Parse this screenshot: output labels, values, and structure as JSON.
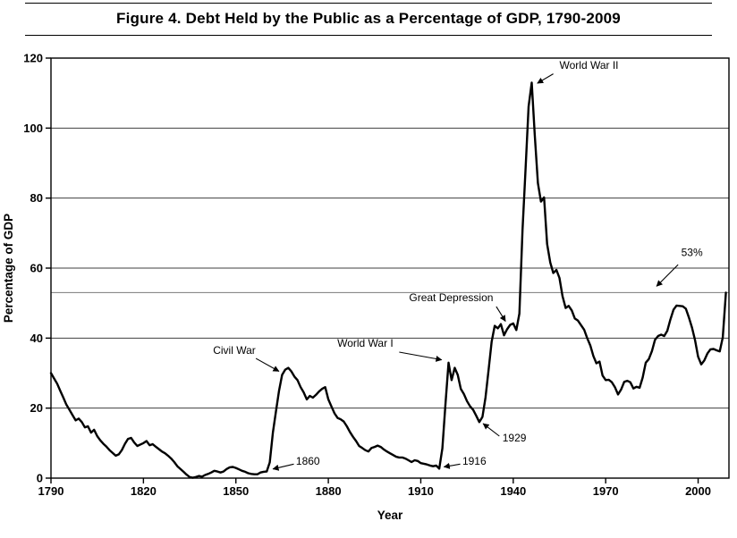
{
  "figure": {
    "title": "Figure 4. Debt Held by the Public as a Percentage of GDP, 1790-2009"
  },
  "chart_data": {
    "type": "line",
    "title": "Figure 4. Debt Held by the Public as a Percentage of GDP, 1790-2009",
    "xlabel": "Year",
    "ylabel": "Percentage of GDP",
    "xlim": [
      1790,
      2010
    ],
    "ylim": [
      0,
      120
    ],
    "xticks": [
      1790,
      1820,
      1850,
      1880,
      1910,
      1940,
      1970,
      2000
    ],
    "yticks": [
      0,
      20,
      40,
      60,
      80,
      100,
      120
    ],
    "grid": "horizontal",
    "legend": "none",
    "line_color": "#000000",
    "reference_line": {
      "value": 53,
      "label": "53%"
    },
    "series": [
      {
        "name": "Debt held by the public (% of GDP)",
        "points": [
          [
            1790,
            30.0
          ],
          [
            1791,
            28.5
          ],
          [
            1792,
            27.0
          ],
          [
            1793,
            25.0
          ],
          [
            1794,
            23.0
          ],
          [
            1795,
            21.0
          ],
          [
            1796,
            19.5
          ],
          [
            1797,
            18.0
          ],
          [
            1798,
            16.5
          ],
          [
            1799,
            17.0
          ],
          [
            1800,
            16.0
          ],
          [
            1801,
            14.5
          ],
          [
            1802,
            14.8
          ],
          [
            1803,
            13.0
          ],
          [
            1804,
            13.8
          ],
          [
            1805,
            12.0
          ],
          [
            1806,
            10.8
          ],
          [
            1807,
            9.8
          ],
          [
            1808,
            9.0
          ],
          [
            1809,
            8.0
          ],
          [
            1810,
            7.2
          ],
          [
            1811,
            6.4
          ],
          [
            1812,
            6.8
          ],
          [
            1813,
            8.0
          ],
          [
            1814,
            9.8
          ],
          [
            1815,
            11.2
          ],
          [
            1816,
            11.5
          ],
          [
            1817,
            10.2
          ],
          [
            1818,
            9.2
          ],
          [
            1819,
            9.6
          ],
          [
            1820,
            10.0
          ],
          [
            1821,
            10.6
          ],
          [
            1822,
            9.4
          ],
          [
            1823,
            9.7
          ],
          [
            1824,
            9.0
          ],
          [
            1825,
            8.3
          ],
          [
            1826,
            7.6
          ],
          [
            1827,
            7.1
          ],
          [
            1828,
            6.4
          ],
          [
            1829,
            5.6
          ],
          [
            1830,
            4.6
          ],
          [
            1831,
            3.4
          ],
          [
            1832,
            2.6
          ],
          [
            1833,
            1.8
          ],
          [
            1834,
            1.0
          ],
          [
            1835,
            0.3
          ],
          [
            1836,
            0.1
          ],
          [
            1837,
            0.3
          ],
          [
            1838,
            0.6
          ],
          [
            1839,
            0.4
          ],
          [
            1840,
            0.9
          ],
          [
            1841,
            1.2
          ],
          [
            1842,
            1.6
          ],
          [
            1843,
            2.1
          ],
          [
            1844,
            1.9
          ],
          [
            1845,
            1.6
          ],
          [
            1846,
            1.9
          ],
          [
            1847,
            2.6
          ],
          [
            1848,
            3.1
          ],
          [
            1849,
            3.2
          ],
          [
            1850,
            2.9
          ],
          [
            1851,
            2.5
          ],
          [
            1852,
            2.1
          ],
          [
            1853,
            1.8
          ],
          [
            1854,
            1.4
          ],
          [
            1855,
            1.2
          ],
          [
            1856,
            1.1
          ],
          [
            1857,
            1.1
          ],
          [
            1858,
            1.6
          ],
          [
            1859,
            1.8
          ],
          [
            1860,
            1.9
          ],
          [
            1861,
            4.5
          ],
          [
            1862,
            13.0
          ],
          [
            1863,
            19.0
          ],
          [
            1864,
            25.0
          ],
          [
            1865,
            29.5
          ],
          [
            1866,
            31.0
          ],
          [
            1867,
            31.5
          ],
          [
            1868,
            30.5
          ],
          [
            1869,
            29.0
          ],
          [
            1870,
            28.0
          ],
          [
            1871,
            26.0
          ],
          [
            1872,
            24.5
          ],
          [
            1873,
            22.5
          ],
          [
            1874,
            23.5
          ],
          [
            1875,
            23.0
          ],
          [
            1876,
            23.8
          ],
          [
            1877,
            24.8
          ],
          [
            1878,
            25.5
          ],
          [
            1879,
            26.0
          ],
          [
            1880,
            22.5
          ],
          [
            1881,
            20.5
          ],
          [
            1882,
            18.5
          ],
          [
            1883,
            17.2
          ],
          [
            1884,
            16.8
          ],
          [
            1885,
            16.2
          ],
          [
            1886,
            14.8
          ],
          [
            1887,
            13.2
          ],
          [
            1888,
            11.8
          ],
          [
            1889,
            10.6
          ],
          [
            1890,
            9.2
          ],
          [
            1891,
            8.6
          ],
          [
            1892,
            8.0
          ],
          [
            1893,
            7.6
          ],
          [
            1894,
            8.6
          ],
          [
            1895,
            8.9
          ],
          [
            1896,
            9.3
          ],
          [
            1897,
            8.9
          ],
          [
            1898,
            8.2
          ],
          [
            1899,
            7.6
          ],
          [
            1900,
            7.1
          ],
          [
            1901,
            6.6
          ],
          [
            1902,
            6.1
          ],
          [
            1903,
            5.9
          ],
          [
            1904,
            5.9
          ],
          [
            1905,
            5.6
          ],
          [
            1906,
            5.1
          ],
          [
            1907,
            4.6
          ],
          [
            1908,
            5.1
          ],
          [
            1909,
            4.9
          ],
          [
            1910,
            4.3
          ],
          [
            1911,
            4.1
          ],
          [
            1912,
            3.9
          ],
          [
            1913,
            3.6
          ],
          [
            1914,
            3.4
          ],
          [
            1915,
            3.6
          ],
          [
            1916,
            2.7
          ],
          [
            1917,
            8.5
          ],
          [
            1918,
            21.0
          ],
          [
            1919,
            33.0
          ],
          [
            1920,
            28.0
          ],
          [
            1921,
            31.5
          ],
          [
            1922,
            29.5
          ],
          [
            1923,
            25.5
          ],
          [
            1924,
            24.0
          ],
          [
            1925,
            22.0
          ],
          [
            1926,
            20.5
          ],
          [
            1927,
            19.5
          ],
          [
            1928,
            17.8
          ],
          [
            1929,
            16.0
          ],
          [
            1930,
            17.5
          ],
          [
            1931,
            23.0
          ],
          [
            1932,
            31.0
          ],
          [
            1933,
            39.0
          ],
          [
            1934,
            43.5
          ],
          [
            1935,
            42.8
          ],
          [
            1936,
            44.0
          ],
          [
            1937,
            40.8
          ],
          [
            1938,
            42.5
          ],
          [
            1939,
            43.8
          ],
          [
            1940,
            44.2
          ],
          [
            1941,
            42.3
          ],
          [
            1942,
            47.0
          ],
          [
            1943,
            70.9
          ],
          [
            1944,
            88.3
          ],
          [
            1945,
            106.2
          ],
          [
            1946,
            113.0
          ],
          [
            1947,
            98.0
          ],
          [
            1948,
            84.3
          ],
          [
            1949,
            79.0
          ],
          [
            1950,
            80.2
          ],
          [
            1951,
            66.9
          ],
          [
            1952,
            61.6
          ],
          [
            1953,
            58.6
          ],
          [
            1954,
            59.5
          ],
          [
            1955,
            57.2
          ],
          [
            1956,
            52.0
          ],
          [
            1957,
            48.6
          ],
          [
            1958,
            49.2
          ],
          [
            1959,
            47.9
          ],
          [
            1960,
            45.6
          ],
          [
            1961,
            45.0
          ],
          [
            1962,
            43.7
          ],
          [
            1963,
            42.4
          ],
          [
            1964,
            40.0
          ],
          [
            1965,
            37.9
          ],
          [
            1966,
            34.9
          ],
          [
            1967,
            32.8
          ],
          [
            1968,
            33.3
          ],
          [
            1969,
            29.3
          ],
          [
            1970,
            28.0
          ],
          [
            1971,
            28.1
          ],
          [
            1972,
            27.4
          ],
          [
            1973,
            26.0
          ],
          [
            1974,
            23.9
          ],
          [
            1975,
            25.3
          ],
          [
            1976,
            27.5
          ],
          [
            1977,
            27.8
          ],
          [
            1978,
            27.4
          ],
          [
            1979,
            25.6
          ],
          [
            1980,
            26.1
          ],
          [
            1981,
            25.8
          ],
          [
            1982,
            28.7
          ],
          [
            1983,
            33.0
          ],
          [
            1984,
            34.0
          ],
          [
            1985,
            36.3
          ],
          [
            1986,
            39.5
          ],
          [
            1987,
            40.6
          ],
          [
            1988,
            41.0
          ],
          [
            1989,
            40.6
          ],
          [
            1990,
            42.1
          ],
          [
            1991,
            45.3
          ],
          [
            1992,
            48.1
          ],
          [
            1993,
            49.3
          ],
          [
            1994,
            49.2
          ],
          [
            1995,
            49.1
          ],
          [
            1996,
            48.4
          ],
          [
            1997,
            45.9
          ],
          [
            1998,
            43.0
          ],
          [
            1999,
            39.4
          ],
          [
            2000,
            34.7
          ],
          [
            2001,
            32.5
          ],
          [
            2002,
            33.6
          ],
          [
            2003,
            35.6
          ],
          [
            2004,
            36.8
          ],
          [
            2005,
            36.9
          ],
          [
            2006,
            36.5
          ],
          [
            2007,
            36.2
          ],
          [
            2008,
            40.2
          ],
          [
            2009,
            53.0
          ]
        ]
      }
    ],
    "annotations": [
      {
        "text": "World War II",
        "label": [
          1955,
          117
        ],
        "anchor": "start",
        "arrow_from": [
          1953,
          115.5
        ],
        "arrow_to": [
          1947.8,
          112.8
        ]
      },
      {
        "text": "53%",
        "label": [
          1994.5,
          63.5
        ],
        "anchor": "start",
        "arrow_from": [
          1993.5,
          61
        ],
        "arrow_to": [
          1986.5,
          54.8
        ]
      },
      {
        "text": "Great Depression",
        "label": [
          1933.5,
          50.5
        ],
        "anchor": "end",
        "arrow_from": [
          1934.5,
          49
        ],
        "arrow_to": [
          1937.5,
          44.8
        ]
      },
      {
        "text": "World War I",
        "label": [
          1892,
          37.5
        ],
        "anchor": "middle",
        "arrow_from": [
          1903,
          36
        ],
        "arrow_to": [
          1916.8,
          33.8
        ]
      },
      {
        "text": "Civil War",
        "label": [
          1849.5,
          35.5
        ],
        "anchor": "middle",
        "arrow_from": [
          1856.5,
          34.2
        ],
        "arrow_to": [
          1864,
          30.5
        ]
      },
      {
        "text": "1929",
        "label": [
          1936.5,
          10.5
        ],
        "anchor": "start",
        "arrow_from": [
          1935.5,
          12
        ],
        "arrow_to": [
          1930.2,
          15.6
        ]
      },
      {
        "text": "1916",
        "label": [
          1923.5,
          3.8
        ],
        "anchor": "start",
        "arrow_from": [
          1922.8,
          4
        ],
        "arrow_to": [
          1917.5,
          3.2
        ]
      },
      {
        "text": "1860",
        "label": [
          1869.5,
          3.8
        ],
        "anchor": "start",
        "arrow_from": [
          1868.8,
          4
        ],
        "arrow_to": [
          1862,
          2.6
        ]
      }
    ]
  }
}
